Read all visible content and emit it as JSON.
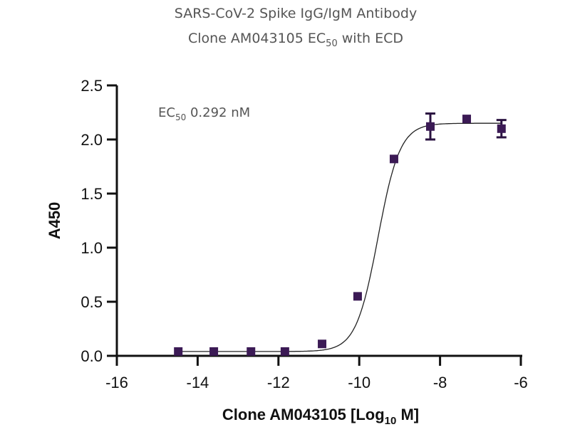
{
  "chart_data": {
    "type": "scatter",
    "title_line1": "SARS-CoV-2 Spike IgG/IgM Antibody",
    "title_line2_main": "Clone AM043105 EC",
    "title_line2_sub": "50",
    "title_line2_end": " with ECD",
    "annotation_main": "EC",
    "annotation_sub": "50",
    "annotation_end": " 0.292 nM",
    "xlabel_main": "Clone AM043105 [Log",
    "xlabel_sub": "10",
    "xlabel_end": " M]",
    "ylabel": "A450",
    "xlim": [
      -16,
      -6
    ],
    "ylim": [
      0,
      2.5
    ],
    "xticks": [
      "-16",
      "-14",
      "-12",
      "-10",
      "-8",
      "-6"
    ],
    "yticks": [
      "0.0",
      "0.5",
      "1.0",
      "1.5",
      "2.0",
      "2.5"
    ],
    "grid": false,
    "marker": "square",
    "color": "#3b1a55",
    "points": [
      {
        "x": -14.48,
        "y": 0.04,
        "err": 0
      },
      {
        "x": -13.6,
        "y": 0.04,
        "err": 0
      },
      {
        "x": -12.68,
        "y": 0.04,
        "err": 0
      },
      {
        "x": -11.84,
        "y": 0.04,
        "err": 0
      },
      {
        "x": -10.92,
        "y": 0.11,
        "err": 0
      },
      {
        "x": -10.04,
        "y": 0.55,
        "err": 0
      },
      {
        "x": -9.14,
        "y": 1.82,
        "err": 0
      },
      {
        "x": -8.24,
        "y": 2.12,
        "err": 0.12
      },
      {
        "x": -7.34,
        "y": 2.19,
        "err": 0
      },
      {
        "x": -6.48,
        "y": 2.1,
        "err": 0.08
      }
    ],
    "fit": {
      "model": "4PL",
      "bottom": 0.04,
      "top": 2.15,
      "logEC50": -9.535,
      "hill": 1.6
    }
  }
}
